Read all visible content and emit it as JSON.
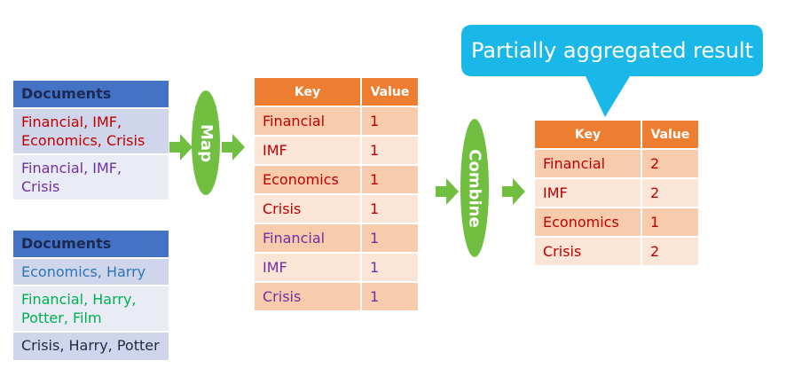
{
  "documents_1": {
    "header": "Documents",
    "rows": [
      {
        "text": "Financial, IMF, Economics, Crisis",
        "color": "#c00000"
      },
      {
        "text": "Financial, IMF, Crisis",
        "color": "#7030a0"
      }
    ]
  },
  "documents_2": {
    "header": "Documents",
    "rows": [
      {
        "text": "Economics, Harry",
        "color": "#2e75b6"
      },
      {
        "text": "Financial, Harry, Potter, Film",
        "color": "#00b050"
      },
      {
        "text": "Crisis, Harry, Potter",
        "color": "#1f2a44"
      }
    ]
  },
  "map_label": "Map",
  "combine_label": "Combine",
  "mapped_table": {
    "key_header": "Key",
    "value_header": "Value",
    "rows": [
      {
        "key": "Financial",
        "value": "1",
        "color": "#c00000"
      },
      {
        "key": "IMF",
        "value": "1",
        "color": "#c00000"
      },
      {
        "key": "Economics",
        "value": "1",
        "color": "#c00000"
      },
      {
        "key": "Crisis",
        "value": "1",
        "color": "#c00000"
      },
      {
        "key": "Financial",
        "value": "1",
        "color": "#7030a0"
      },
      {
        "key": "IMF",
        "value": "1",
        "color": "#7030a0"
      },
      {
        "key": "Crisis",
        "value": "1",
        "color": "#7030a0"
      }
    ]
  },
  "combined_table": {
    "key_header": "Key",
    "value_header": "Value",
    "rows": [
      {
        "key": "Financial",
        "value": "2",
        "color": "#c00000"
      },
      {
        "key": "IMF",
        "value": "2",
        "color": "#c00000"
      },
      {
        "key": "Economics",
        "value": "1",
        "color": "#c00000"
      },
      {
        "key": "Crisis",
        "value": "2",
        "color": "#c00000"
      }
    ]
  },
  "callout_text": "Partially aggregated result",
  "colors": {
    "arrow": "#70bf41",
    "oval": "#70bf41",
    "callout": "#1ab8e8",
    "doc_header": "#4472c4",
    "kv_header": "#ed7d31"
  }
}
